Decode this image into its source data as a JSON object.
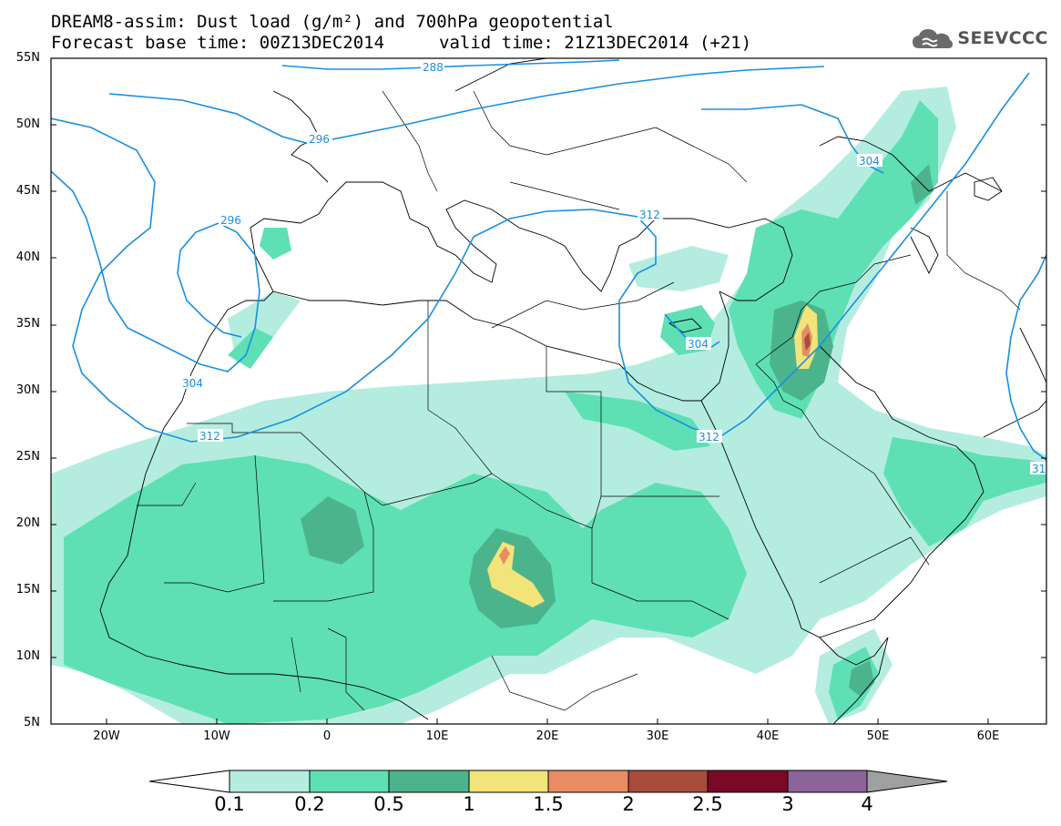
{
  "header": {
    "line1": "DREAM8-assim: Dust load (g/m²) and 700hPa geopotential",
    "line2_base": "Forecast base time: 00Z13DEC2014",
    "line2_valid": "valid time: 21Z13DEC2014 (+21)"
  },
  "logo": {
    "text": "SEEVCCC",
    "icon": "cloud-icon"
  },
  "axes": {
    "lat_labels": [
      "55N",
      "50N",
      "45N",
      "40N",
      "35N",
      "30N",
      "25N",
      "20N",
      "15N",
      "10N",
      "5N"
    ],
    "lon_labels": [
      "20W",
      "10W",
      "0",
      "10E",
      "20E",
      "30E",
      "40E",
      "50E",
      "60E"
    ]
  },
  "contours": {
    "color": "#1a8fe0",
    "labels": [
      "288",
      "296",
      "296",
      "304",
      "304",
      "304",
      "312",
      "312",
      "312",
      "312",
      "31"
    ]
  },
  "colorbar": {
    "labels": [
      "0.1",
      "0.2",
      "0.5",
      "1",
      "1.5",
      "2",
      "2.5",
      "3",
      "4"
    ],
    "colors": [
      "#b4ede0",
      "#5ee0b4",
      "#4cb48c",
      "#f2e479",
      "#e88c64",
      "#a84c3c",
      "#780a28",
      "#8c649c",
      "#a0a0a0"
    ],
    "under_color": "#ffffff"
  }
}
